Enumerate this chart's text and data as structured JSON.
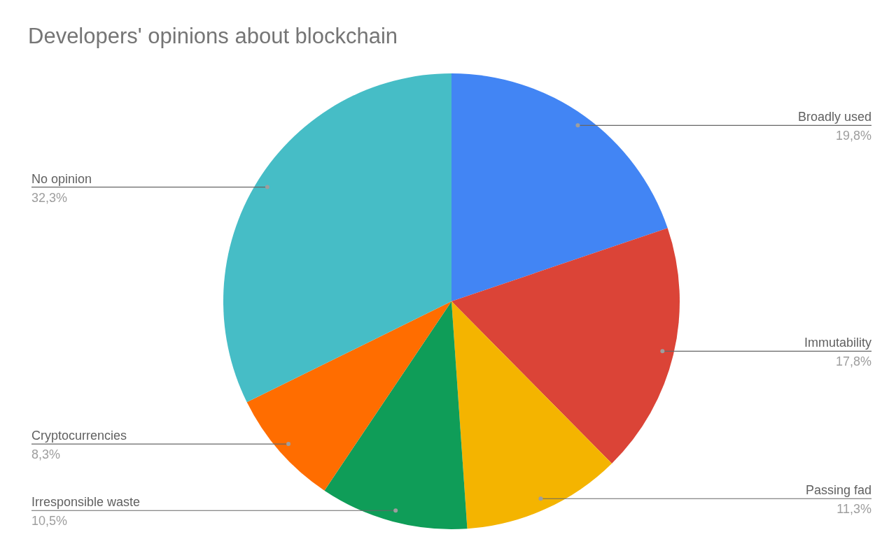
{
  "chart_data": {
    "type": "pie",
    "title": "Developers' opinions about blockchain",
    "categories": [
      "Broadly used",
      "Immutability",
      "Passing fad",
      "Irresponsible waste",
      "Cryptocurrencies",
      "No opinion"
    ],
    "values": [
      19.8,
      17.8,
      11.3,
      10.5,
      8.3,
      32.3
    ],
    "colors": [
      "#4285f4",
      "#db4437",
      "#f4b400",
      "#0f9d58",
      "#ff6d00",
      "#46bdc6"
    ],
    "value_labels": [
      "19,8%",
      "17,8%",
      "11,3%",
      "10,5%",
      "8,3%",
      "32,3%"
    ]
  }
}
